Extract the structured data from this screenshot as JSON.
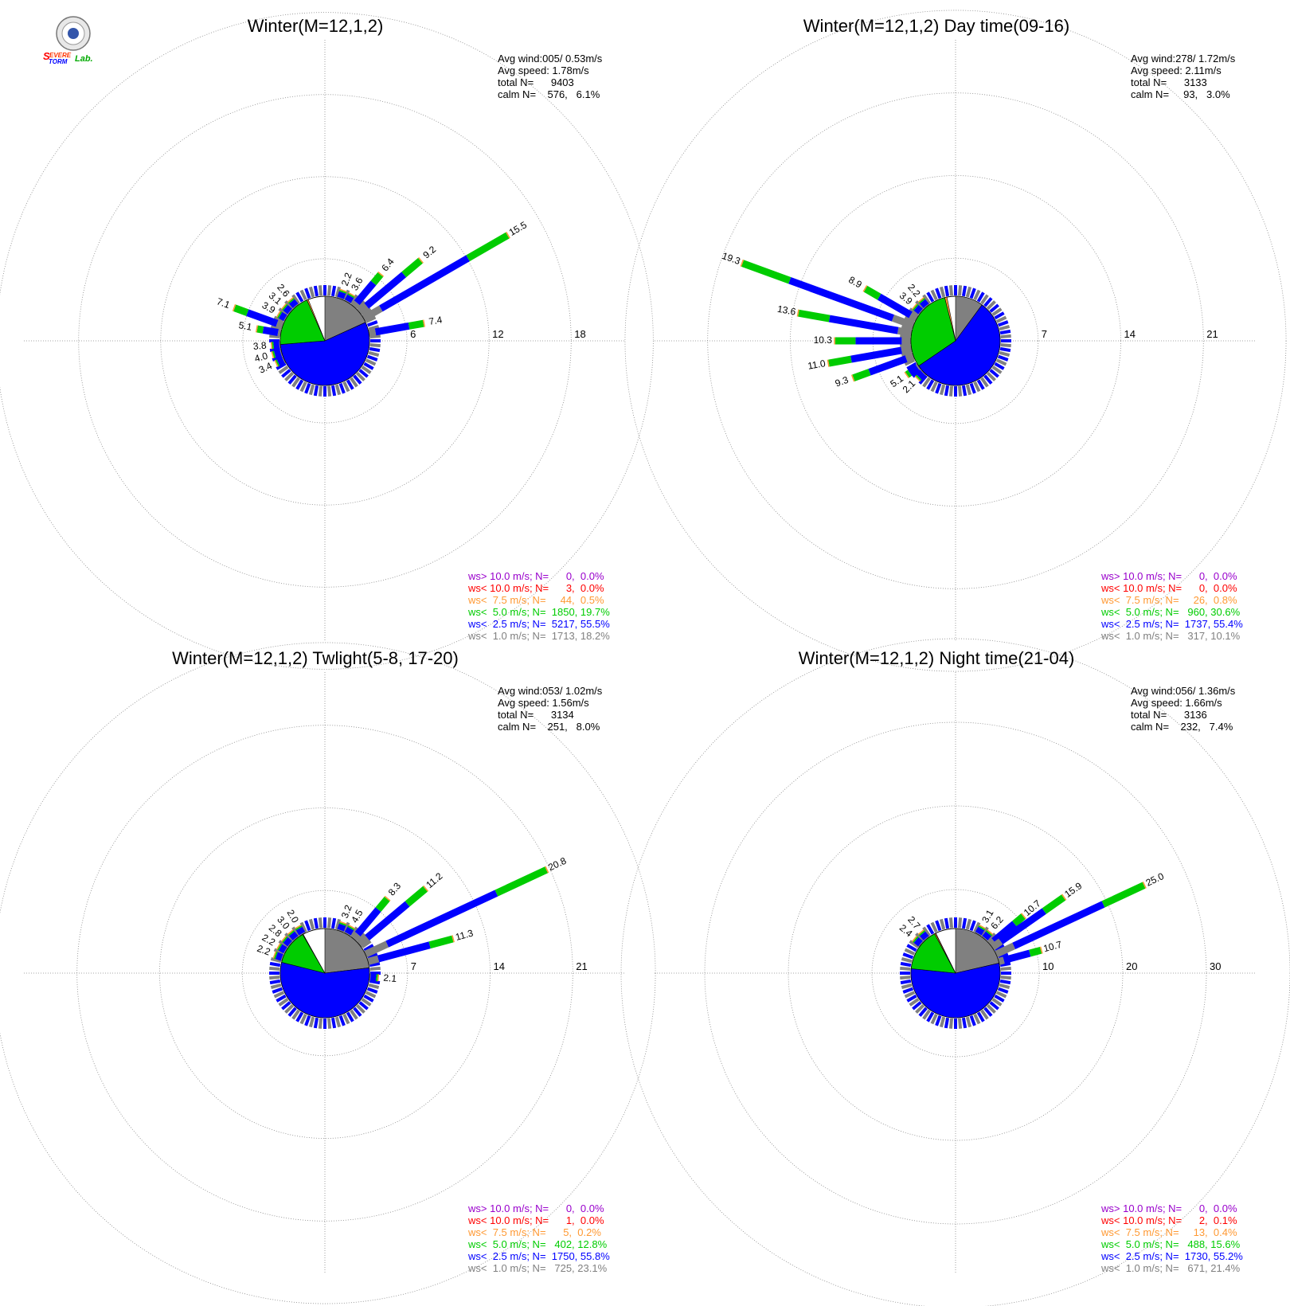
{
  "logo": {
    "alt": "Severe Storm Lab."
  },
  "colors": {
    "gt10": "#9900cc",
    "lt10": "#ff0000",
    "lt7_5": "#ff9933",
    "lt5": "#00cc00",
    "lt2_5": "#0000ff",
    "lt1": "#808080"
  },
  "chart_data": [
    {
      "type": "windrose",
      "title": "Winter(M=12,1,2)",
      "stats": [
        "Avg wind:005/ 0.53m/s",
        "Avg speed: 1.78m/s",
        "total N=      9403",
        "calm N=    576,   6.1%"
      ],
      "ring_labels": [
        "6",
        "12",
        "18"
      ],
      "rmax": 22,
      "pie": {
        "lt1": 18.2,
        "lt2_5": 55.5,
        "lt5": 19.7,
        "lt7_5": 0.5,
        "lt10": 0.0
      },
      "legend": [
        {
          "cls": "gt10",
          "text": "ws> 10.0 m/s; N=      0,  0.0%"
        },
        {
          "cls": "lt10",
          "text": "ws< 10.0 m/s; N=      3,  0.0%"
        },
        {
          "cls": "lt7_5",
          "text": "ws<  7.5 m/s; N=     44,  0.5%"
        },
        {
          "cls": "lt5",
          "text": "ws<  5.0 m/s; N=  1850, 19.7%"
        },
        {
          "cls": "lt2_5",
          "text": "ws<  2.5 m/s; N=  5217, 55.5%"
        },
        {
          "cls": "lt1",
          "text": "ws<  1.0 m/s; N=  1713, 18.2%"
        }
      ],
      "bars": [
        {
          "dir": 20,
          "value": 2.2,
          "label": "2.2"
        },
        {
          "dir": 30,
          "value": 3.6,
          "label": "3.6"
        },
        {
          "dir": 40,
          "value": 6.4,
          "label": "6.4"
        },
        {
          "dir": 50,
          "value": 9.2,
          "label": "9.2"
        },
        {
          "dir": 60,
          "value": 15.5,
          "label": "15.5"
        },
        {
          "dir": 80,
          "value": 7.4,
          "label": "7.4"
        },
        {
          "dir": 290,
          "value": 7.1,
          "label": "7.1"
        },
        {
          "dir": 280,
          "value": 5.1,
          "label": "5.1"
        },
        {
          "dir": 300,
          "value": 3.9,
          "label": "3.9"
        },
        {
          "dir": 310,
          "value": 3.1,
          "label": "3.1"
        },
        {
          "dir": 320,
          "value": 2.6,
          "label": "2.6"
        },
        {
          "dir": 265,
          "value": 3.8,
          "label": "3.8"
        },
        {
          "dir": 255,
          "value": 4.0,
          "label": "4.0"
        },
        {
          "dir": 245,
          "value": 3.4,
          "label": "3.4"
        }
      ]
    },
    {
      "type": "windrose",
      "title": "Winter(M=12,1,2) Day time(09-16)",
      "stats": [
        "Avg wind:278/ 1.72m/s",
        "Avg speed: 2.11m/s",
        "total N=      3133",
        "calm N=     93,   3.0%"
      ],
      "ring_labels": [
        "7",
        "14",
        "21"
      ],
      "rmax": 25.5,
      "pie": {
        "lt1": 10.1,
        "lt2_5": 55.4,
        "lt5": 30.6,
        "lt7_5": 0.8,
        "lt10": 0.0
      },
      "legend": [
        {
          "cls": "gt10",
          "text": "ws> 10.0 m/s; N=      0,  0.0%"
        },
        {
          "cls": "lt10",
          "text": "ws< 10.0 m/s; N=      0,  0.0%"
        },
        {
          "cls": "lt7_5",
          "text": "ws<  7.5 m/s; N=     26,  0.8%"
        },
        {
          "cls": "lt5",
          "text": "ws<  5.0 m/s; N=   960, 30.6%"
        },
        {
          "cls": "lt2_5",
          "text": "ws<  2.5 m/s; N=  1737, 55.4%"
        },
        {
          "cls": "lt1",
          "text": "ws<  1.0 m/s; N=   317, 10.1%"
        }
      ],
      "bars": [
        {
          "dir": 290,
          "value": 19.3,
          "label": "19.3"
        },
        {
          "dir": 300,
          "value": 8.9,
          "label": "8.9"
        },
        {
          "dir": 310,
          "value": 3.9,
          "label": "3.9"
        },
        {
          "dir": 320,
          "value": 2.2,
          "label": "2.2"
        },
        {
          "dir": 280,
          "value": 13.6,
          "label": "13.6"
        },
        {
          "dir": 270,
          "value": 10.3,
          "label": "10.3"
        },
        {
          "dir": 260,
          "value": 11.0,
          "label": "11.0"
        },
        {
          "dir": 250,
          "value": 9.3,
          "label": "9.3"
        },
        {
          "dir": 235,
          "value": 5.1,
          "label": "5.1"
        },
        {
          "dir": 225,
          "value": 2.1,
          "label": "2.1"
        }
      ]
    },
    {
      "type": "windrose",
      "title": "Winter(M=12,1,2) Twlight(5-8, 17-20)",
      "stats": [
        "Avg wind:053/ 1.02m/s",
        "Avg speed: 1.56m/s",
        "total N=      3134",
        "calm N=    251,   8.0%"
      ],
      "ring_labels": [
        "7",
        "14",
        "21"
      ],
      "rmax": 25.5,
      "pie": {
        "lt1": 23.1,
        "lt2_5": 55.8,
        "lt5": 12.8,
        "lt7_5": 0.2,
        "lt10": 0.0
      },
      "legend": [
        {
          "cls": "gt10",
          "text": "ws> 10.0 m/s; N=      0,  0.0%"
        },
        {
          "cls": "lt10",
          "text": "ws< 10.0 m/s; N=      1,  0.0%"
        },
        {
          "cls": "lt7_5",
          "text": "ws<  7.5 m/s; N=      5,  0.2%"
        },
        {
          "cls": "lt5",
          "text": "ws<  5.0 m/s; N=   402, 12.8%"
        },
        {
          "cls": "lt2_5",
          "text": "ws<  2.5 m/s; N=  1750, 55.8%"
        },
        {
          "cls": "lt1",
          "text": "ws<  1.0 m/s; N=   725, 23.1%"
        }
      ],
      "bars": [
        {
          "dir": 20,
          "value": 3.2,
          "label": "3.2"
        },
        {
          "dir": 30,
          "value": 4.5,
          "label": "4.5"
        },
        {
          "dir": 40,
          "value": 8.3,
          "label": "8.3"
        },
        {
          "dir": 50,
          "value": 11.2,
          "label": "11.2"
        },
        {
          "dir": 65,
          "value": 20.8,
          "label": "20.8"
        },
        {
          "dir": 75,
          "value": 11.3,
          "label": "11.3"
        },
        {
          "dir": 95,
          "value": 2.1,
          "label": "2.1"
        },
        {
          "dir": 330,
          "value": 2.0,
          "label": "2.0"
        },
        {
          "dir": 320,
          "value": 3.0,
          "label": "3.0"
        },
        {
          "dir": 310,
          "value": 2.8,
          "label": "2.8"
        },
        {
          "dir": 300,
          "value": 2.2,
          "label": "2.2"
        },
        {
          "dir": 290,
          "value": 2.2,
          "label": "2.2"
        }
      ]
    },
    {
      "type": "windrose",
      "title": "Winter(M=12,1,2) Night time(21-04)",
      "stats": [
        "Avg wind:056/ 1.36m/s",
        "Avg speed: 1.66m/s",
        "total N=      3136",
        "calm N=    232,   7.4%"
      ],
      "ring_labels": [
        "10",
        "20",
        "30"
      ],
      "rmax": 36,
      "pie": {
        "lt1": 21.4,
        "lt2_5": 55.2,
        "lt5": 15.6,
        "lt7_5": 0.4,
        "lt10": 0.1
      },
      "legend": [
        {
          "cls": "gt10",
          "text": "ws> 10.0 m/s; N=      0,  0.0%"
        },
        {
          "cls": "lt10",
          "text": "ws< 10.0 m/s; N=      2,  0.1%"
        },
        {
          "cls": "lt7_5",
          "text": "ws<  7.5 m/s; N=     13,  0.4%"
        },
        {
          "cls": "lt5",
          "text": "ws<  5.0 m/s; N=   488, 15.6%"
        },
        {
          "cls": "lt2_5",
          "text": "ws<  2.5 m/s; N=  1730, 55.2%"
        },
        {
          "cls": "lt1",
          "text": "ws<  1.0 m/s; N=   671, 21.4%"
        }
      ],
      "bars": [
        {
          "dir": 30,
          "value": 3.1,
          "label": "3.1"
        },
        {
          "dir": 40,
          "value": 6.2,
          "label": "6.2"
        },
        {
          "dir": 50,
          "value": 10.7,
          "label": "10.7"
        },
        {
          "dir": 55,
          "value": 15.9,
          "label": "15.9"
        },
        {
          "dir": 65,
          "value": 25.0,
          "label": "25.0"
        },
        {
          "dir": 75,
          "value": 10.7,
          "label": "10.7"
        },
        {
          "dir": 320,
          "value": 2.7,
          "label": "2.7"
        },
        {
          "dir": 310,
          "value": 2.4,
          "label": "2.4"
        }
      ]
    }
  ]
}
